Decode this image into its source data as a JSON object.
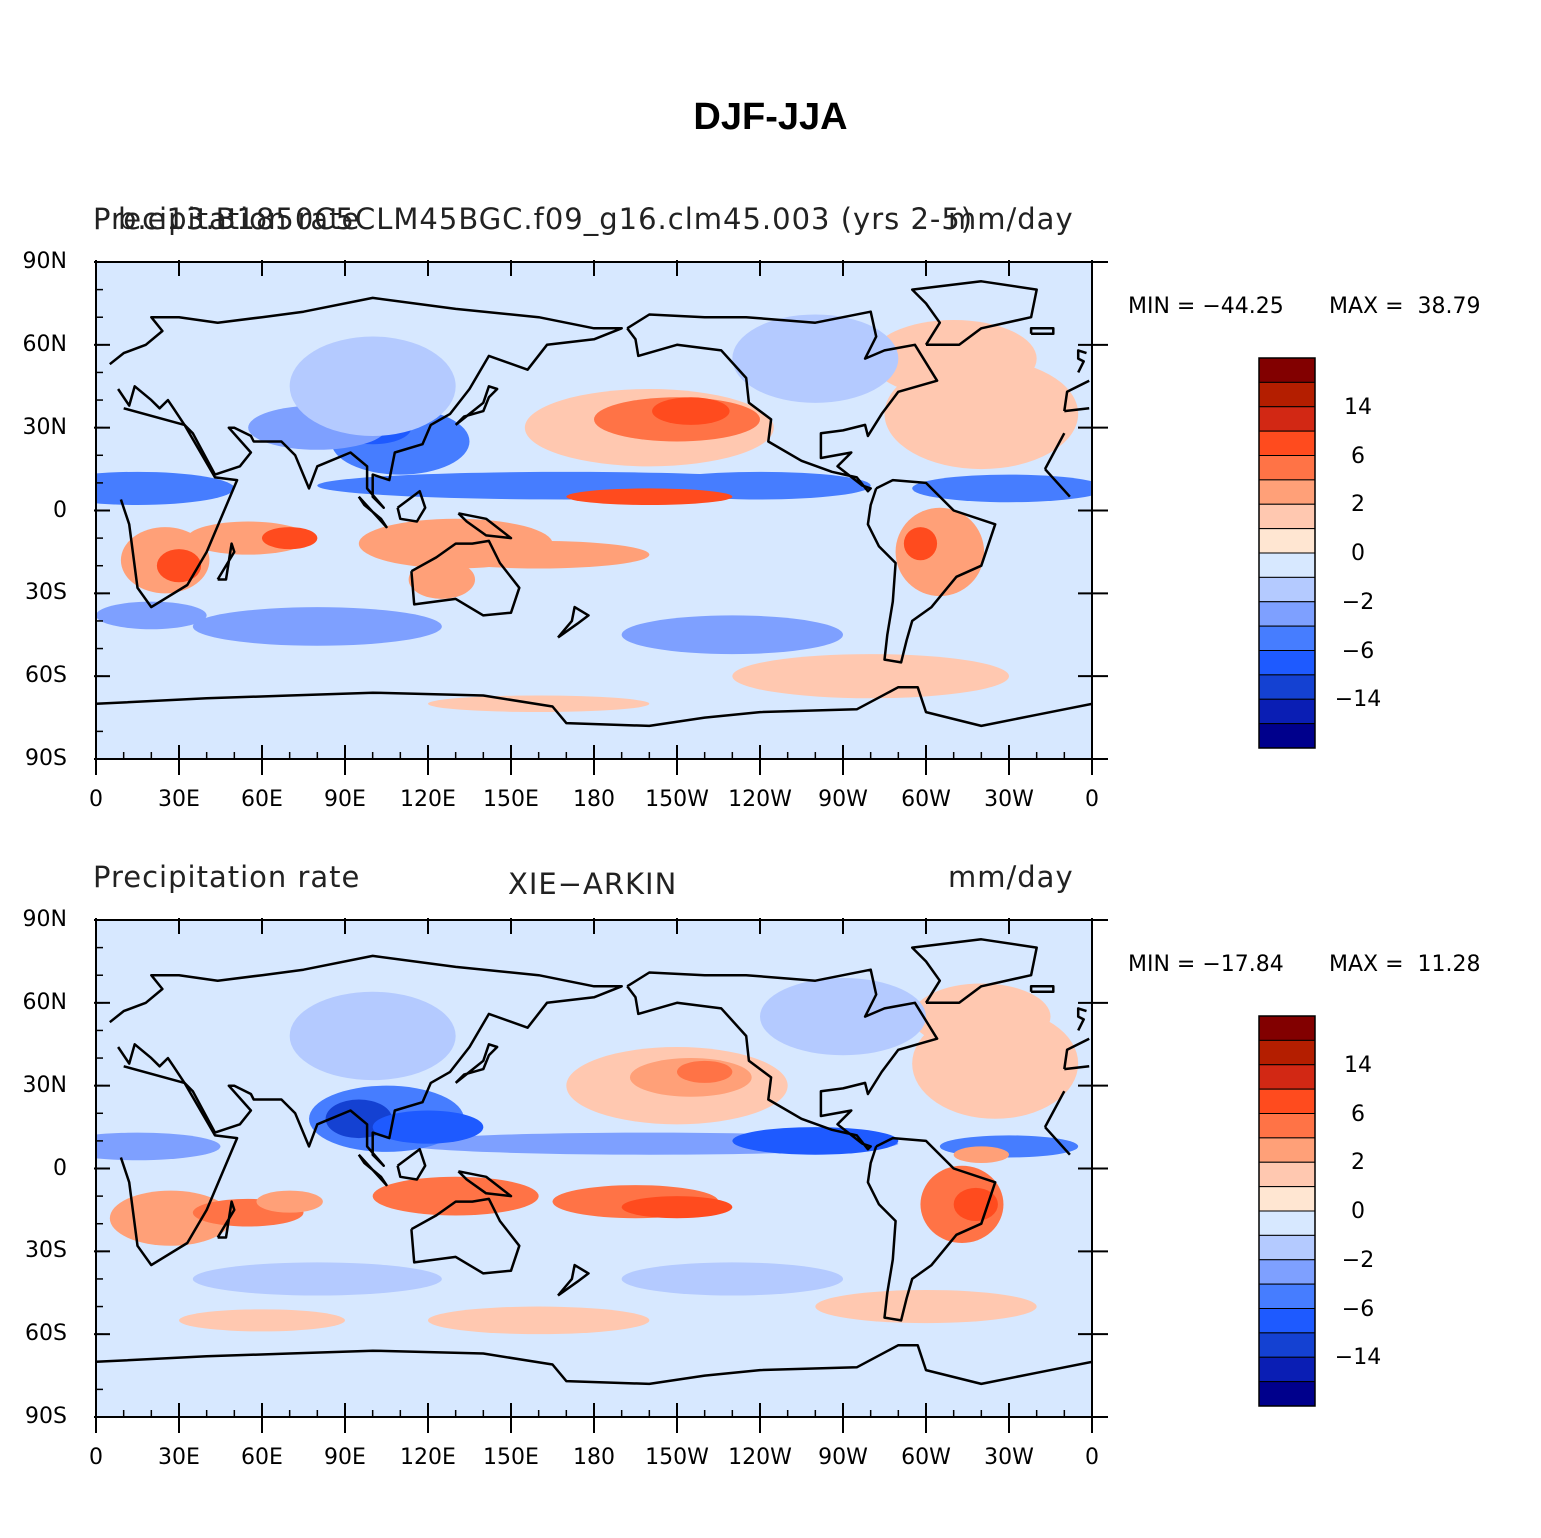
{
  "title": "DJF-JJA",
  "palette": [
    "#00008c",
    "#0a1eb4",
    "#1441d2",
    "#1e5aff",
    "#467dff",
    "#7ea0ff",
    "#b4caff",
    "#d7e8ff",
    "#ffe6d2",
    "#ffc8b0",
    "#ffa078",
    "#ff7346",
    "#ff4b1e",
    "#d22814",
    "#b41e00",
    "#820000"
  ],
  "colorbar_labels": [
    "14",
    "6",
    "2",
    "0",
    "−2",
    "−6",
    "−14"
  ],
  "lat_labels": [
    "90N",
    "60N",
    "30N",
    "0",
    "30S",
    "60S",
    "90S"
  ],
  "lon_labels": [
    "0",
    "30E",
    "60E",
    "90E",
    "120E",
    "150E",
    "180",
    "150W",
    "120W",
    "90W",
    "60W",
    "30W",
    "0"
  ],
  "panels": [
    {
      "left_title": "Precipitation rate",
      "center_title": "b.e13.B1850C5CLM45BGC.f09_g16.clm45.003 (yrs 2-5)",
      "right_title": "mm/day",
      "min_label": "MIN = −44.25",
      "max_label": "MAX =  38.79"
    },
    {
      "left_title": "Precipitation rate",
      "center_title": "XIE−ARKIN",
      "right_title": "mm/day",
      "min_label": "MIN = −17.84",
      "max_label": "MAX =  11.28"
    }
  ]
}
